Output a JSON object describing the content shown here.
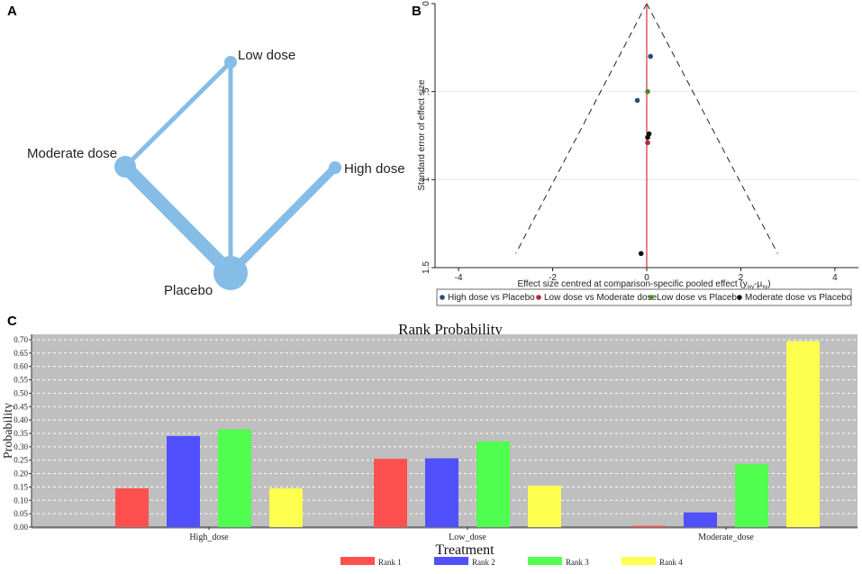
{
  "panels": {
    "a": "A",
    "b": "B",
    "c": "C"
  },
  "network": {
    "color": "#85bde6",
    "nodes": [
      {
        "id": "low",
        "label": "Low dose"
      },
      {
        "id": "moderate",
        "label": "Moderate dose"
      },
      {
        "id": "high",
        "label": "High dose"
      },
      {
        "id": "placebo",
        "label": "Placebo"
      }
    ],
    "edges": [
      {
        "from": "moderate",
        "to": "low"
      },
      {
        "from": "low",
        "to": "placebo"
      },
      {
        "from": "moderate",
        "to": "placebo"
      },
      {
        "from": "high",
        "to": "placebo"
      }
    ]
  },
  "funnel": {
    "type": "scatter",
    "xlabel": "Effect size centred at comparison-specific pooled effect (y",
    "xlabel_sub1": "ixy",
    "xlabel_mid": "-μ",
    "xlabel_sub2": "xy",
    "xlabel_end": ")",
    "ylabel": "Standard error of effect size",
    "xlim": [
      -4.5,
      4.5
    ],
    "ylim": [
      0,
      1.5
    ],
    "xticks": [
      -4,
      -2,
      0,
      2,
      4
    ],
    "yticks": [
      0,
      0.5,
      1,
      1.5
    ],
    "ytick_labels": [
      "0",
      ".5",
      "1",
      "1.5"
    ],
    "null_line_color": "#e03030",
    "series": [
      {
        "name": "High dose vs Placebo",
        "color": "#2b4d7a",
        "points": [
          [
            0.08,
            0.3
          ],
          [
            -0.2,
            0.55
          ]
        ]
      },
      {
        "name": "Low dose vs Moderate dose",
        "color": "#b0293a",
        "points": [
          [
            0.02,
            0.79
          ]
        ]
      },
      {
        "name": "Low dose vs Placebo",
        "color": "#4f8a2a",
        "points": [
          [
            0.02,
            0.5
          ]
        ]
      },
      {
        "name": "Moderate dose vs Placebo",
        "color": "#111111",
        "points": [
          [
            0.05,
            0.74
          ],
          [
            0.02,
            0.76
          ],
          [
            -0.12,
            1.42
          ]
        ]
      }
    ]
  },
  "chart_data": {
    "type": "bar",
    "title": "Rank Probability",
    "xlabel": "Treatment",
    "ylabel": "Probability",
    "ylim": [
      0,
      0.72
    ],
    "yticks": [
      "0.00",
      "0.05",
      "0.10",
      "0.15",
      "0.20",
      "0.25",
      "0.30",
      "0.35",
      "0.40",
      "0.45",
      "0.50",
      "0.55",
      "0.60",
      "0.65",
      "0.70"
    ],
    "categories": [
      "High_dose",
      "Low_dose",
      "Moderate_dose"
    ],
    "series": [
      {
        "name": "Rank 1",
        "color": "#ff5050",
        "values": [
          0.145,
          0.255,
          0.005
        ]
      },
      {
        "name": "Rank 2",
        "color": "#5050ff",
        "values": [
          0.34,
          0.257,
          0.055
        ]
      },
      {
        "name": "Rank 3",
        "color": "#50ff50",
        "values": [
          0.365,
          0.32,
          0.235
        ]
      },
      {
        "name": "Rank 4",
        "color": "#ffff50",
        "values": [
          0.145,
          0.155,
          0.695
        ]
      }
    ]
  }
}
